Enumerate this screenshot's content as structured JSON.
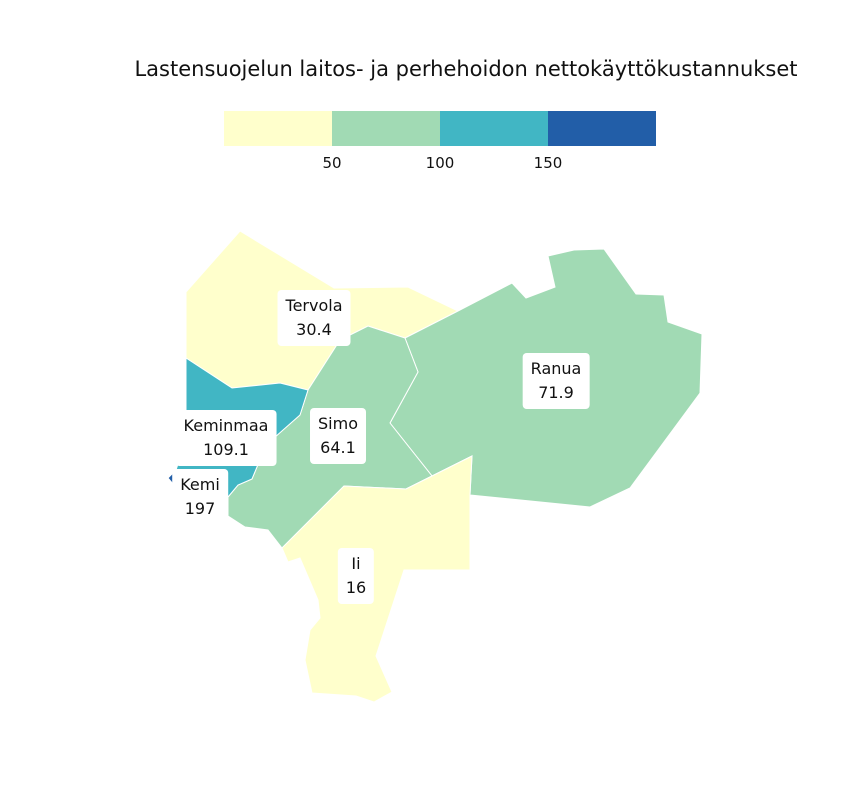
{
  "title": "Lastensuojelun laitos- ja perhehoidon nettokäyttökustannukset",
  "legend": {
    "bins": [
      {
        "color": "#ffffcc"
      },
      {
        "color": "#a1dab4"
      },
      {
        "color": "#41b6c4"
      },
      {
        "color": "#225ea8"
      }
    ],
    "ticks": [
      "50",
      "100",
      "150"
    ]
  },
  "chart_data": {
    "type": "choropleth",
    "title": "Lastensuojelun laitos- ja perhehoidon nettokäyttökustannukset",
    "breaks": [
      50,
      100,
      150
    ],
    "regions": [
      {
        "name": "Tervola",
        "value": "30.4",
        "color": "#ffffcc"
      },
      {
        "name": "Ranua",
        "value": "71.9",
        "color": "#a1dab4"
      },
      {
        "name": "Simo",
        "value": "64.1",
        "color": "#a1dab4"
      },
      {
        "name": "Keminmaa",
        "value": "109.1",
        "color": "#41b6c4"
      },
      {
        "name": "Kemi",
        "value": "197",
        "color": "#225ea8"
      },
      {
        "name": "Ii",
        "value": "16",
        "color": "#ffffcc"
      }
    ]
  }
}
